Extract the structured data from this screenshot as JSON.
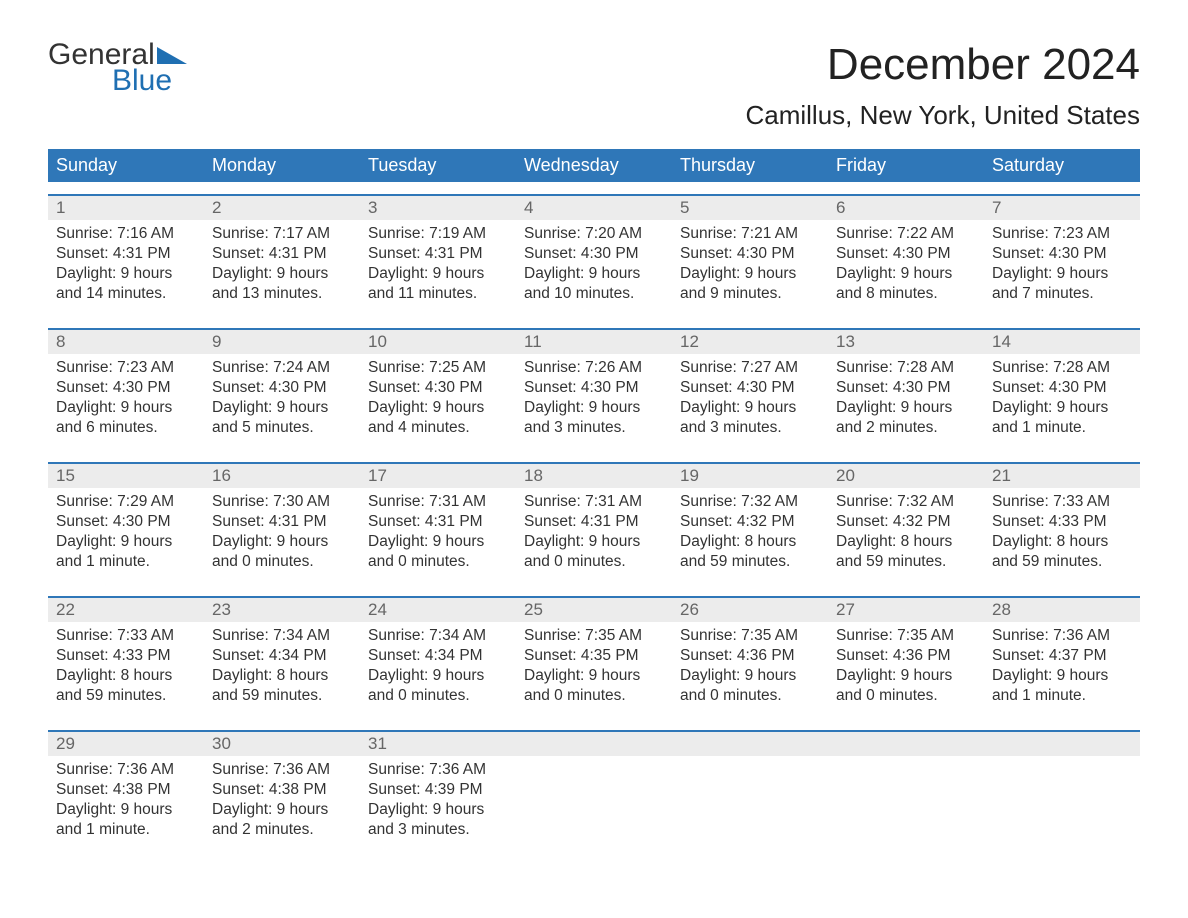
{
  "logo": {
    "word1": "General",
    "word2": "Blue",
    "accent_color": "#1f6fb2"
  },
  "title": "December 2024",
  "subtitle": "Camillus, New York, United States",
  "colors": {
    "header_bg": "#2f77b8",
    "header_text": "#ffffff",
    "daynum_bg": "#ececec",
    "daynum_border": "#2f77b8",
    "daynum_text": "#666666",
    "body_text": "#333333",
    "background": "#ffffff"
  },
  "day_headers": [
    "Sunday",
    "Monday",
    "Tuesday",
    "Wednesday",
    "Thursday",
    "Friday",
    "Saturday"
  ],
  "weeks": [
    {
      "nums": [
        "1",
        "2",
        "3",
        "4",
        "5",
        "6",
        "7"
      ],
      "cells": [
        {
          "sunrise": "Sunrise: 7:16 AM",
          "sunset": "Sunset: 4:31 PM",
          "d1": "Daylight: 9 hours",
          "d2": "and 14 minutes."
        },
        {
          "sunrise": "Sunrise: 7:17 AM",
          "sunset": "Sunset: 4:31 PM",
          "d1": "Daylight: 9 hours",
          "d2": "and 13 minutes."
        },
        {
          "sunrise": "Sunrise: 7:19 AM",
          "sunset": "Sunset: 4:31 PM",
          "d1": "Daylight: 9 hours",
          "d2": "and 11 minutes."
        },
        {
          "sunrise": "Sunrise: 7:20 AM",
          "sunset": "Sunset: 4:30 PM",
          "d1": "Daylight: 9 hours",
          "d2": "and 10 minutes."
        },
        {
          "sunrise": "Sunrise: 7:21 AM",
          "sunset": "Sunset: 4:30 PM",
          "d1": "Daylight: 9 hours",
          "d2": "and 9 minutes."
        },
        {
          "sunrise": "Sunrise: 7:22 AM",
          "sunset": "Sunset: 4:30 PM",
          "d1": "Daylight: 9 hours",
          "d2": "and 8 minutes."
        },
        {
          "sunrise": "Sunrise: 7:23 AM",
          "sunset": "Sunset: 4:30 PM",
          "d1": "Daylight: 9 hours",
          "d2": "and 7 minutes."
        }
      ]
    },
    {
      "nums": [
        "8",
        "9",
        "10",
        "11",
        "12",
        "13",
        "14"
      ],
      "cells": [
        {
          "sunrise": "Sunrise: 7:23 AM",
          "sunset": "Sunset: 4:30 PM",
          "d1": "Daylight: 9 hours",
          "d2": "and 6 minutes."
        },
        {
          "sunrise": "Sunrise: 7:24 AM",
          "sunset": "Sunset: 4:30 PM",
          "d1": "Daylight: 9 hours",
          "d2": "and 5 minutes."
        },
        {
          "sunrise": "Sunrise: 7:25 AM",
          "sunset": "Sunset: 4:30 PM",
          "d1": "Daylight: 9 hours",
          "d2": "and 4 minutes."
        },
        {
          "sunrise": "Sunrise: 7:26 AM",
          "sunset": "Sunset: 4:30 PM",
          "d1": "Daylight: 9 hours",
          "d2": "and 3 minutes."
        },
        {
          "sunrise": "Sunrise: 7:27 AM",
          "sunset": "Sunset: 4:30 PM",
          "d1": "Daylight: 9 hours",
          "d2": "and 3 minutes."
        },
        {
          "sunrise": "Sunrise: 7:28 AM",
          "sunset": "Sunset: 4:30 PM",
          "d1": "Daylight: 9 hours",
          "d2": "and 2 minutes."
        },
        {
          "sunrise": "Sunrise: 7:28 AM",
          "sunset": "Sunset: 4:30 PM",
          "d1": "Daylight: 9 hours",
          "d2": "and 1 minute."
        }
      ]
    },
    {
      "nums": [
        "15",
        "16",
        "17",
        "18",
        "19",
        "20",
        "21"
      ],
      "cells": [
        {
          "sunrise": "Sunrise: 7:29 AM",
          "sunset": "Sunset: 4:30 PM",
          "d1": "Daylight: 9 hours",
          "d2": "and 1 minute."
        },
        {
          "sunrise": "Sunrise: 7:30 AM",
          "sunset": "Sunset: 4:31 PM",
          "d1": "Daylight: 9 hours",
          "d2": "and 0 minutes."
        },
        {
          "sunrise": "Sunrise: 7:31 AM",
          "sunset": "Sunset: 4:31 PM",
          "d1": "Daylight: 9 hours",
          "d2": "and 0 minutes."
        },
        {
          "sunrise": "Sunrise: 7:31 AM",
          "sunset": "Sunset: 4:31 PM",
          "d1": "Daylight: 9 hours",
          "d2": "and 0 minutes."
        },
        {
          "sunrise": "Sunrise: 7:32 AM",
          "sunset": "Sunset: 4:32 PM",
          "d1": "Daylight: 8 hours",
          "d2": "and 59 minutes."
        },
        {
          "sunrise": "Sunrise: 7:32 AM",
          "sunset": "Sunset: 4:32 PM",
          "d1": "Daylight: 8 hours",
          "d2": "and 59 minutes."
        },
        {
          "sunrise": "Sunrise: 7:33 AM",
          "sunset": "Sunset: 4:33 PM",
          "d1": "Daylight: 8 hours",
          "d2": "and 59 minutes."
        }
      ]
    },
    {
      "nums": [
        "22",
        "23",
        "24",
        "25",
        "26",
        "27",
        "28"
      ],
      "cells": [
        {
          "sunrise": "Sunrise: 7:33 AM",
          "sunset": "Sunset: 4:33 PM",
          "d1": "Daylight: 8 hours",
          "d2": "and 59 minutes."
        },
        {
          "sunrise": "Sunrise: 7:34 AM",
          "sunset": "Sunset: 4:34 PM",
          "d1": "Daylight: 8 hours",
          "d2": "and 59 minutes."
        },
        {
          "sunrise": "Sunrise: 7:34 AM",
          "sunset": "Sunset: 4:34 PM",
          "d1": "Daylight: 9 hours",
          "d2": "and 0 minutes."
        },
        {
          "sunrise": "Sunrise: 7:35 AM",
          "sunset": "Sunset: 4:35 PM",
          "d1": "Daylight: 9 hours",
          "d2": "and 0 minutes."
        },
        {
          "sunrise": "Sunrise: 7:35 AM",
          "sunset": "Sunset: 4:36 PM",
          "d1": "Daylight: 9 hours",
          "d2": "and 0 minutes."
        },
        {
          "sunrise": "Sunrise: 7:35 AM",
          "sunset": "Sunset: 4:36 PM",
          "d1": "Daylight: 9 hours",
          "d2": "and 0 minutes."
        },
        {
          "sunrise": "Sunrise: 7:36 AM",
          "sunset": "Sunset: 4:37 PM",
          "d1": "Daylight: 9 hours",
          "d2": "and 1 minute."
        }
      ]
    },
    {
      "nums": [
        "29",
        "30",
        "31",
        "",
        "",
        "",
        ""
      ],
      "cells": [
        {
          "sunrise": "Sunrise: 7:36 AM",
          "sunset": "Sunset: 4:38 PM",
          "d1": "Daylight: 9 hours",
          "d2": "and 1 minute."
        },
        {
          "sunrise": "Sunrise: 7:36 AM",
          "sunset": "Sunset: 4:38 PM",
          "d1": "Daylight: 9 hours",
          "d2": "and 2 minutes."
        },
        {
          "sunrise": "Sunrise: 7:36 AM",
          "sunset": "Sunset: 4:39 PM",
          "d1": "Daylight: 9 hours",
          "d2": "and 3 minutes."
        },
        null,
        null,
        null,
        null
      ]
    }
  ]
}
